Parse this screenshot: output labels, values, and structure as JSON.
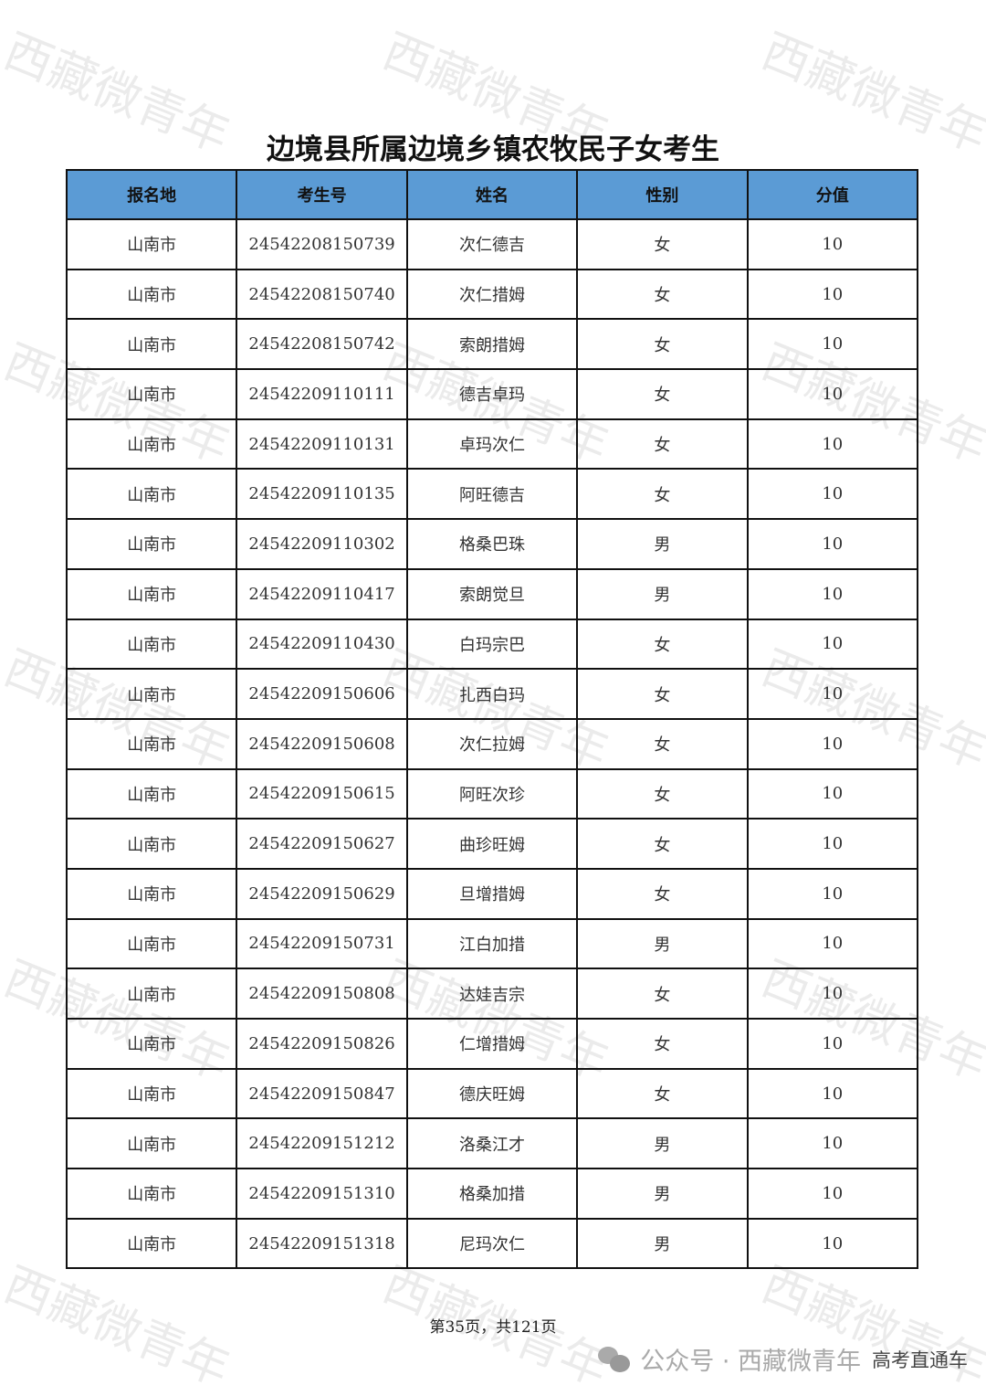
{
  "title": "边境县所属边境乡镇农牧民子女考生",
  "columns": [
    "报名地",
    "考生号",
    "姓名",
    "性别",
    "分值"
  ],
  "header_color": "#5b9bd5",
  "rows": [
    [
      "山南市",
      "24542208150739",
      "次仁德吉",
      "女",
      "10"
    ],
    [
      "山南市",
      "24542208150740",
      "次仁措姆",
      "女",
      "10"
    ],
    [
      "山南市",
      "24542208150742",
      "索朗措姆",
      "女",
      "10"
    ],
    [
      "山南市",
      "24542209110111",
      "德吉卓玛",
      "女",
      "10"
    ],
    [
      "山南市",
      "24542209110131",
      "卓玛次仁",
      "女",
      "10"
    ],
    [
      "山南市",
      "24542209110135",
      "阿旺德吉",
      "女",
      "10"
    ],
    [
      "山南市",
      "24542209110302",
      "格桑巴珠",
      "男",
      "10"
    ],
    [
      "山南市",
      "24542209110417",
      "索朗觉旦",
      "男",
      "10"
    ],
    [
      "山南市",
      "24542209110430",
      "白玛宗巴",
      "女",
      "10"
    ],
    [
      "山南市",
      "24542209150606",
      "扎西白玛",
      "女",
      "10"
    ],
    [
      "山南市",
      "24542209150608",
      "次仁拉姆",
      "女",
      "10"
    ],
    [
      "山南市",
      "24542209150615",
      "阿旺次珍",
      "女",
      "10"
    ],
    [
      "山南市",
      "24542209150627",
      "曲珍旺姆",
      "女",
      "10"
    ],
    [
      "山南市",
      "24542209150629",
      "旦增措姆",
      "女",
      "10"
    ],
    [
      "山南市",
      "24542209150731",
      "江白加措",
      "男",
      "10"
    ],
    [
      "山南市",
      "24542209150808",
      "达娃吉宗",
      "女",
      "10"
    ],
    [
      "山南市",
      "24542209150826",
      "仁增措姆",
      "女",
      "10"
    ],
    [
      "山南市",
      "24542209150847",
      "德庆旺姆",
      "女",
      "10"
    ],
    [
      "山南市",
      "24542209151212",
      "洛桑江才",
      "男",
      "10"
    ],
    [
      "山南市",
      "24542209151310",
      "格桑加措",
      "男",
      "10"
    ],
    [
      "山南市",
      "24542209151318",
      "尼玛次仁",
      "男",
      "10"
    ]
  ],
  "footer": "第35页，共121页",
  "watermark": "西藏微青年",
  "brand": {
    "icon": "wechat-icon",
    "text": "公众号 · 西藏微青年",
    "overlay": "高考直通车"
  }
}
